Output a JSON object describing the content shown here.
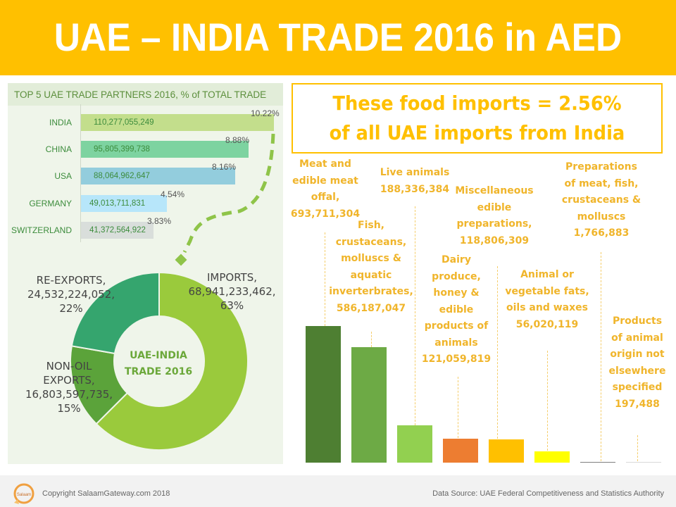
{
  "header": {
    "title": "UAE – INDIA TRADE 2016 in AED",
    "bg_color": "#FFC000"
  },
  "callout": {
    "line1": "These food imports = 2.56%",
    "line2": "of all UAE imports from India"
  },
  "footer": {
    "copyright": "Copyright SalaamGateway.com 2018",
    "source": "Data Source: UAE Federal Competitiveness and Statistics Authority",
    "logo": "salaam-logo-icon"
  },
  "chart_data": [
    {
      "type": "bar",
      "orientation": "horizontal",
      "title": "TOP 5 UAE TRADE PARTNERS 2016, % of TOTAL TRADE",
      "categories": [
        "INDIA",
        "CHINA",
        "USA",
        "GERMANY",
        "SWITZERLAND"
      ],
      "values": [
        110277055249,
        95805399738,
        88064962647,
        49013711831,
        41372564922
      ],
      "value_labels": [
        "110,277,055,249",
        "95,805,399,738",
        "88,064,962,647",
        "49,013,711,831",
        "41,372,564,922"
      ],
      "percent_labels": [
        "10.22%",
        "8.88%",
        "8.16%",
        "4.54%",
        "3.83%"
      ],
      "percents": [
        10.22,
        8.88,
        8.16,
        4.54,
        3.83
      ],
      "colors": [
        "#C3DE8C",
        "#7DD3A0",
        "#93CDDD",
        "#B7E6FA",
        "#D9DEDB"
      ]
    },
    {
      "type": "pie",
      "variant": "donut",
      "title": "UAE-INDIA TRADE 2016",
      "center_line1": "UAE-INDIA",
      "center_line2": "TRADE 2016",
      "categories": [
        "IMPORTS",
        "NON-OIL EXPORTS",
        "RE-EXPORTS"
      ],
      "values": [
        68941233462,
        16803597735,
        24532224052
      ],
      "percents": [
        63,
        15,
        22
      ],
      "labels": [
        {
          "l1": "IMPORTS,",
          "l2": "68,941,233,462,",
          "l3": "63%"
        },
        {
          "l1": "NON-OIL",
          "l2": "EXPORTS,",
          "l3": "16,803,597,735,",
          "l4": "15%"
        },
        {
          "l1": "RE-EXPORTS,",
          "l2": "24,532,224,052,",
          "l3": "22%"
        }
      ],
      "colors": [
        "#9ACA3C",
        "#5BA33A",
        "#35A56E"
      ]
    },
    {
      "type": "bar",
      "orientation": "vertical",
      "title": "UAE food imports from India 2016 (AED)",
      "categories": [
        "Meat and edible meat offal",
        "Fish, crustaceans, molluscs & aquatic inverterbrates",
        "Live animals",
        "Dairy produce, honey & edible products of animals",
        "Miscellaneous edible preparations",
        "Animal or vegetable fats, oils and waxes",
        "Preparations of meat, fish, crustaceans & molluscs",
        "Products of animal origin not elsewhere specified"
      ],
      "values": [
        693711304,
        586187047,
        188336384,
        121059819,
        118806309,
        56020119,
        1766883,
        197488
      ],
      "colors": [
        "#4E7F32",
        "#6DAA45",
        "#92D050",
        "#ED7D31",
        "#FFC000",
        "#FFFF00",
        "#7F7F7F",
        "#D9D9D9"
      ],
      "labels": [
        [
          "Meat and",
          "edible meat",
          "offal,",
          "693,711,304"
        ],
        [
          "Fish,",
          "crustaceans,",
          "molluscs &",
          "aquatic",
          "inverterbrates,",
          "586,187,047"
        ],
        [
          "Live animals",
          "188,336,384"
        ],
        [
          "Dairy",
          "produce,",
          "honey &",
          "edible",
          "products of",
          "animals",
          "121,059,819"
        ],
        [
          "Miscellaneous",
          "edible",
          "preparations,",
          "118,806,309"
        ],
        [
          "Animal or",
          "vegetable fats,",
          "oils and waxes",
          "56,020,119"
        ],
        [
          "Preparations",
          "of meat, fish,",
          "crustaceans &",
          "molluscs",
          "1,766,883"
        ],
        [
          "Products",
          "of animal",
          "origin not",
          "elsewhere",
          "specified",
          "197,488"
        ]
      ],
      "label_color": "#F0B52B"
    }
  ]
}
